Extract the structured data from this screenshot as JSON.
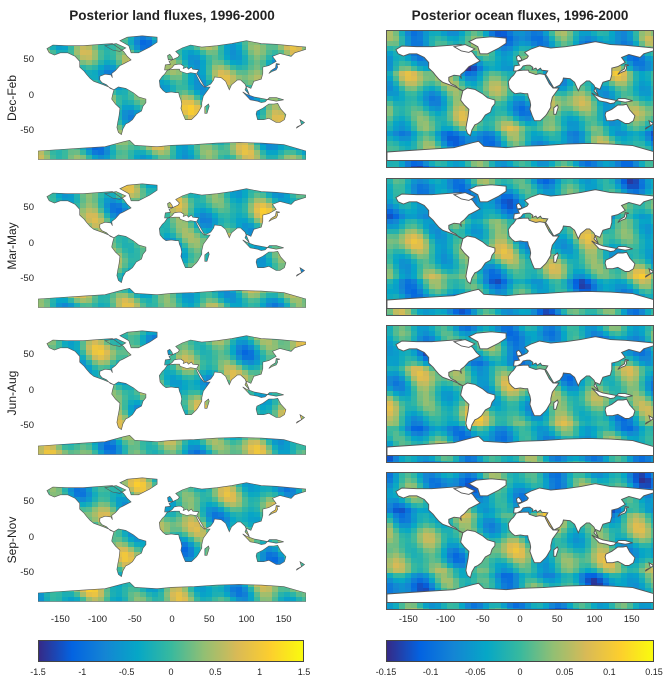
{
  "titles": {
    "land": "Posterior land fluxes, 1996-2000",
    "ocean": "Posterior ocean fluxes, 1996-2000"
  },
  "seasons": [
    "Dec-Feb",
    "Mar-May",
    "Jun-Aug",
    "Sep-Nov"
  ],
  "lat_ticks": [
    "50",
    "0",
    "-50"
  ],
  "lon_ticks": [
    "-150",
    "-100",
    "-50",
    "0",
    "50",
    "100",
    "150"
  ],
  "colorbars": {
    "land": [
      "-1.5",
      "-1",
      "-0.5",
      "0",
      "0.5",
      "1",
      "1.5"
    ],
    "ocean": [
      "-0.15",
      "-0.1",
      "-0.05",
      "0",
      "0.05",
      "0.1",
      "0.15"
    ]
  },
  "colors": {
    "colormap": [
      "#352a87",
      "#0363e1",
      "#1485d4",
      "#06a7c6",
      "#38b99e",
      "#92bf73",
      "#d9ba56",
      "#fcce2e",
      "#f9fb0e"
    ],
    "neutral": "#43b39a",
    "coast": "#555555"
  },
  "chart_data": {
    "type": "heatmap",
    "description_scale": "seasonal posterior flux maps, 4 seasons x 2 (land, ocean)",
    "land_range": [
      -1.5,
      1.5
    ],
    "ocean_range": [
      -0.15,
      0.15
    ],
    "xlim": [
      -180,
      180
    ],
    "ylim": [
      -90,
      90
    ]
  }
}
